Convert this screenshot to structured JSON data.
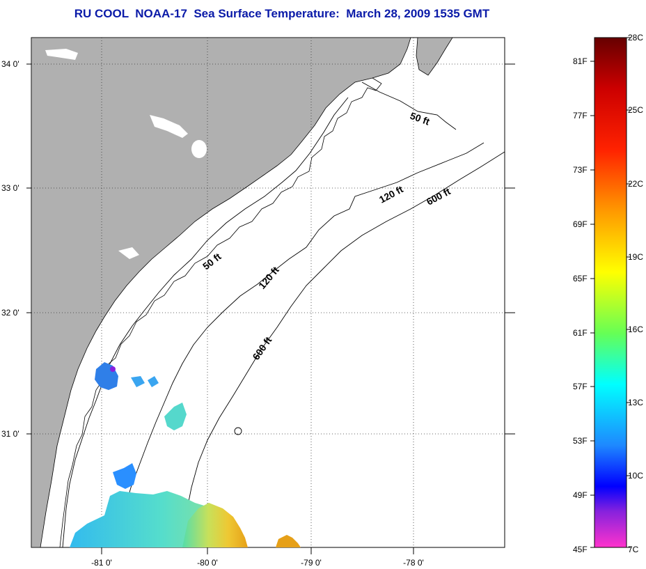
{
  "title": "RU COOL  NOAA-17  Sea Surface Temperature:  March 28, 2009 1535 GMT",
  "map": {
    "lon_range": [
      -81.5,
      -77.15
    ],
    "lat_range": [
      30.2,
      34.22
    ],
    "lat_ticks": [
      {
        "value": 34.0,
        "label": "34 0'"
      },
      {
        "value": 33.0,
        "label": "33 0'"
      },
      {
        "value": 32.0,
        "label": "32 0'"
      },
      {
        "value": 31.0,
        "label": "31 0'"
      }
    ],
    "lon_ticks": [
      {
        "value": -81.0,
        "label": "-81 0'"
      },
      {
        "value": -80.0,
        "label": "-80 0'"
      },
      {
        "value": -79.0,
        "label": "-79 0'"
      },
      {
        "value": -78.0,
        "label": "-78 0'"
      }
    ],
    "land_color": "#b0b0b0",
    "water_color": "#ffffff",
    "isobath_labels": [
      "50 ft",
      "120 ft",
      "600 ft",
      "50 ft",
      "120 ft",
      "600 ft"
    ]
  },
  "colorbar": {
    "fahrenheit_labels": [
      "81F",
      "77F",
      "73F",
      "69F",
      "65F",
      "61F",
      "57F",
      "53F",
      "49F",
      "45F"
    ],
    "celsius_labels": [
      "28C",
      "25C",
      "22C",
      "19C",
      "16C",
      "13C",
      "10C",
      "7C"
    ],
    "colors": [
      "#ff33cc",
      "#8822dd",
      "#0000ff",
      "#1e90ff",
      "#00ffff",
      "#33dd66",
      "#ffff00",
      "#ff8800",
      "#ff0000",
      "#cc0000",
      "#660000"
    ]
  }
}
